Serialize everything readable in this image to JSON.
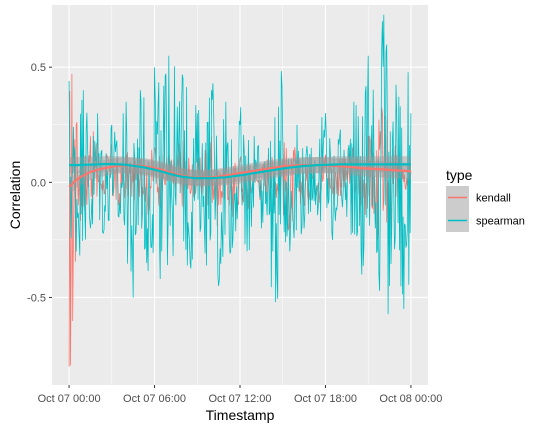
{
  "chart_data": {
    "type": "line",
    "xlabel": "Timestamp",
    "ylabel": "Correlation",
    "x_ticks": [
      "Oct 07 00:00",
      "Oct 07 06:00",
      "Oct 07 12:00",
      "Oct 07 18:00",
      "Oct 08 00:00"
    ],
    "x_tick_hours": [
      0,
      6,
      12,
      18,
      24
    ],
    "xlim_hours": [
      -1.2,
      25.2
    ],
    "y_ticks": [
      -0.5,
      0.0,
      0.5
    ],
    "y_tick_labels": [
      "-0.5",
      "0.0",
      "0.5"
    ],
    "ylim": [
      -0.88,
      0.77
    ],
    "grid": true,
    "legend": {
      "title": "type",
      "position": "right"
    },
    "series": [
      {
        "name": "kendall",
        "color": "#F8766D",
        "hours": [
          0,
          0.5,
          1,
          1.5,
          2,
          2.5,
          3,
          3.5,
          4,
          4.5,
          5,
          5.5,
          6,
          6.5,
          7,
          7.5,
          8,
          8.5,
          9,
          9.5,
          10,
          10.5,
          11,
          11.5,
          12,
          12.5,
          13,
          13.5,
          14,
          14.5,
          15,
          15.5,
          16,
          16.5,
          17,
          17.5,
          18,
          18.5,
          19,
          19.5,
          20,
          20.5,
          21,
          21.5,
          22,
          22.5,
          23,
          23.5,
          24
        ],
        "values": [
          -0.8,
          0.25,
          -0.1,
          0.2,
          0.05,
          -0.05,
          0.15,
          -0.1,
          0.12,
          0.0,
          0.1,
          -0.08,
          0.15,
          0.05,
          0.12,
          0.0,
          0.18,
          -0.05,
          0.1,
          0.02,
          0.2,
          -0.1,
          0.05,
          -0.15,
          0.1,
          -0.12,
          0.08,
          -0.05,
          0.12,
          0.0,
          0.1,
          -0.2,
          0.05,
          -0.1,
          0.08,
          0.0,
          0.12,
          -0.05,
          0.1,
          0.05,
          0.15,
          -0.1,
          0.2,
          -0.15,
          0.3,
          -0.2,
          0.12,
          0.0,
          0.05
        ],
        "smooth": [
          -0.02,
          0.01,
          0.03,
          0.045,
          0.055,
          0.062,
          0.068,
          0.072,
          0.074,
          0.074,
          0.072,
          0.068,
          0.062,
          0.055,
          0.045,
          0.035,
          0.028,
          0.022,
          0.02,
          0.02,
          0.022,
          0.025,
          0.03,
          0.035,
          0.04,
          0.045,
          0.05,
          0.055,
          0.06,
          0.065,
          0.07,
          0.072,
          0.074,
          0.075,
          0.075,
          0.075,
          0.074,
          0.072,
          0.07,
          0.068,
          0.065,
          0.062,
          0.06,
          0.058,
          0.056,
          0.054,
          0.052,
          0.05,
          0.048
        ]
      },
      {
        "name": "spearman",
        "color": "#00BFC4",
        "hours": [
          0,
          0.5,
          1,
          1.5,
          2,
          2.5,
          3,
          3.5,
          4,
          4.5,
          5,
          5.5,
          6,
          6.5,
          7,
          7.5,
          8,
          8.5,
          9,
          9.5,
          10,
          10.5,
          11,
          11.5,
          12,
          12.5,
          13,
          13.5,
          14,
          14.5,
          15,
          15.5,
          16,
          16.5,
          17,
          17.5,
          18,
          18.5,
          19,
          19.5,
          20,
          20.5,
          21,
          21.5,
          22,
          22.5,
          23,
          23.5,
          24
        ],
        "values": [
          0.44,
          -0.3,
          0.4,
          -0.2,
          0.3,
          -0.1,
          0.25,
          -0.15,
          0.35,
          -0.5,
          0.4,
          -0.2,
          0.5,
          -0.3,
          0.55,
          -0.1,
          0.45,
          -0.35,
          0.3,
          -0.2,
          0.4,
          -0.45,
          0.35,
          -0.25,
          0.25,
          -0.3,
          0.2,
          -0.2,
          0.15,
          -0.52,
          0.2,
          -0.3,
          0.25,
          -0.2,
          0.15,
          -0.1,
          0.3,
          -0.25,
          0.2,
          -0.15,
          0.35,
          -0.3,
          0.55,
          -0.2,
          0.7,
          -0.45,
          0.3,
          -0.55,
          0.3
        ],
        "smooth": [
          0.075,
          0.075,
          0.076,
          0.077,
          0.078,
          0.079,
          0.079,
          0.078,
          0.076,
          0.072,
          0.068,
          0.062,
          0.055,
          0.047,
          0.038,
          0.03,
          0.024,
          0.02,
          0.018,
          0.018,
          0.018,
          0.02,
          0.022,
          0.026,
          0.03,
          0.035,
          0.04,
          0.045,
          0.05,
          0.055,
          0.06,
          0.064,
          0.068,
          0.071,
          0.073,
          0.075,
          0.076,
          0.077,
          0.078,
          0.078,
          0.078,
          0.078,
          0.078,
          0.078,
          0.078,
          0.078,
          0.078,
          0.078,
          0.078
        ]
      }
    ]
  }
}
